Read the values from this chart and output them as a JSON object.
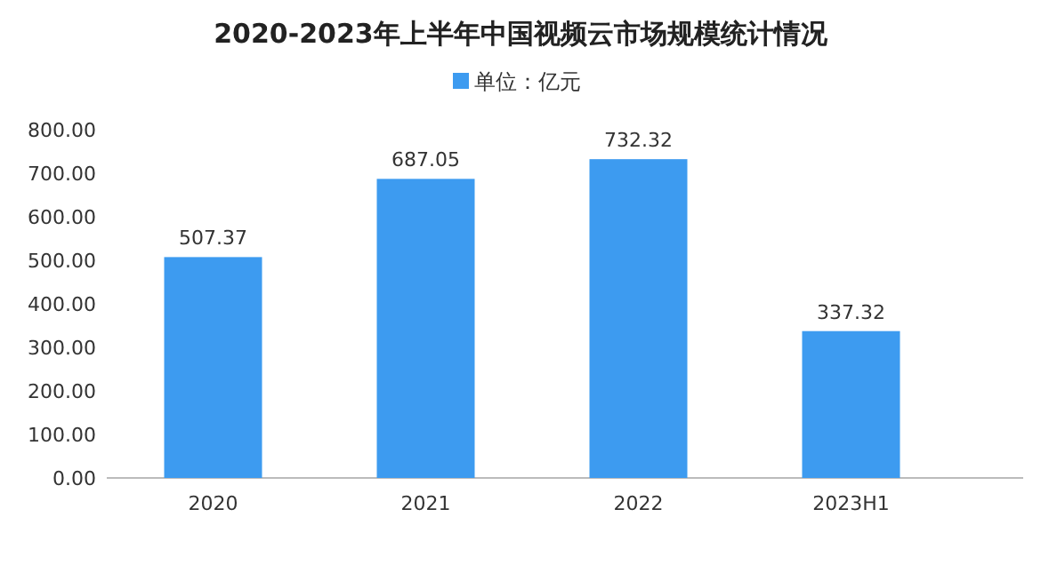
{
  "chart_data": {
    "type": "bar",
    "title": "2020-2023年上半年中国视频云市场规模统计情况",
    "categories": [
      "2020",
      "2021",
      "2022",
      "2023H1"
    ],
    "series": [
      {
        "name": "单位：亿元",
        "color": "#3d9bf0",
        "values": [
          507.37,
          687.05,
          732.32,
          337.32
        ]
      }
    ],
    "ylim": [
      0,
      800
    ],
    "yticks": [
      {
        "value": 0,
        "label": "0.00"
      },
      {
        "value": 100,
        "label": "100.00"
      },
      {
        "value": 200,
        "label": "200.00"
      },
      {
        "value": 300,
        "label": "300.00"
      },
      {
        "value": 400,
        "label": "400.00"
      },
      {
        "value": 500,
        "label": "500.00"
      },
      {
        "value": 600,
        "label": "600.00"
      },
      {
        "value": 700,
        "label": "700.00"
      },
      {
        "value": 800,
        "label": "800.00"
      }
    ],
    "legend": "top",
    "data_labels": true
  }
}
